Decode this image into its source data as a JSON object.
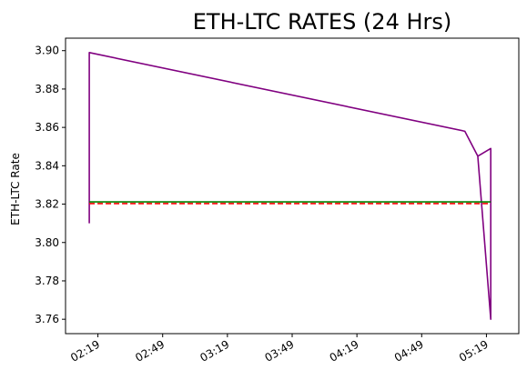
{
  "chart_data": {
    "type": "line",
    "title": "ETH-LTC RATES (24 Hrs)",
    "xlabel": "",
    "ylabel": "ETH-LTC Rate",
    "xlim": [
      "02:04",
      "05:34"
    ],
    "ylim": [
      3.7525,
      3.9065
    ],
    "grid": false,
    "x_ticks": [
      "02:19",
      "02:49",
      "03:19",
      "03:49",
      "04:19",
      "04:49",
      "05:19"
    ],
    "y_ticks": [
      "3.76",
      "3.78",
      "3.80",
      "3.82",
      "3.84",
      "3.86",
      "3.88",
      "3.90"
    ],
    "series": [
      {
        "color": "#800080",
        "style": "solid",
        "points": [
          [
            "02:15",
            3.81
          ],
          [
            "02:15",
            3.851
          ],
          [
            "02:15",
            3.812
          ],
          [
            "02:15",
            3.899
          ],
          [
            "05:09",
            3.858
          ],
          [
            "05:15",
            3.845
          ],
          [
            "05:21",
            3.849
          ],
          [
            "05:21",
            3.847
          ],
          [
            "05:21",
            3.76
          ],
          [
            "05:15",
            3.845
          ],
          [
            "05:21",
            3.849
          ],
          [
            "05:21",
            3.76
          ]
        ]
      },
      {
        "color": "#008000",
        "style": "solid",
        "points": [
          [
            "02:15",
            3.8212
          ],
          [
            "05:21",
            3.8212
          ]
        ]
      },
      {
        "color": "#ff0000",
        "style": "dashed",
        "points": [
          [
            "02:15",
            3.8203
          ],
          [
            "05:21",
            3.8203
          ]
        ]
      }
    ]
  }
}
